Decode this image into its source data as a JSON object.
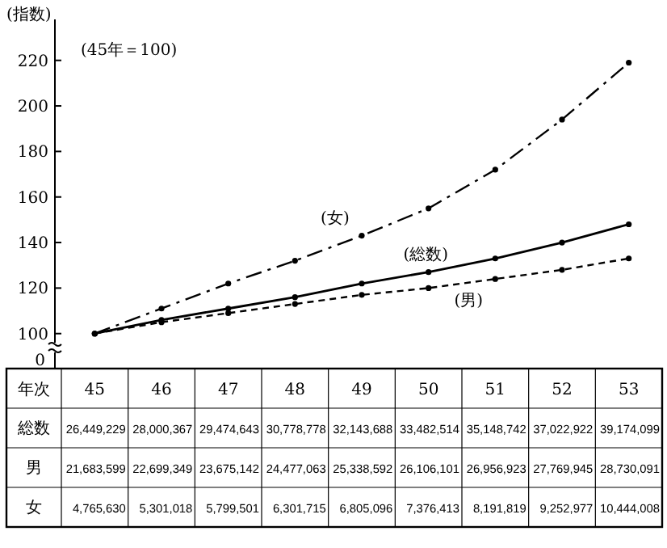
{
  "chart_data": {
    "type": "line",
    "ylabel": "(指数)",
    "categories": [
      "45",
      "46",
      "47",
      "48",
      "49",
      "50",
      "51",
      "52",
      "53"
    ],
    "series": [
      {
        "name": "(総数)",
        "color": "#000000",
        "line_style": "solid",
        "values": [
          100,
          106,
          111,
          116,
          122,
          127,
          133,
          140,
          148
        ]
      },
      {
        "name": "(男)",
        "color": "#000000",
        "line_style": "dashed",
        "values": [
          100,
          105,
          109,
          113,
          117,
          120,
          124,
          128,
          133
        ]
      },
      {
        "name": "(女)",
        "color": "#000000",
        "line_style": "dashdot",
        "values": [
          100,
          111,
          122,
          132,
          143,
          155,
          172,
          194,
          219
        ]
      }
    ],
    "ylim": [
      96,
      238
    ],
    "yticks": [
      100,
      120,
      140,
      160,
      180,
      200,
      220
    ],
    "marker": "circle",
    "grid": false,
    "tick_labels": "y",
    "annotations": [
      "(45年＝100)",
      "0",
      "年次",
      "総数",
      "26,449,229",
      "28,000,367",
      "29,474,643",
      "30,778,778",
      "32,143,688",
      "33,482,514",
      "35,148,742",
      "37,022,922",
      "39,174,099",
      "男",
      "21,683,599",
      "22,699,349",
      "23,675,142",
      "24,477,063",
      "25,338,592",
      "26,106,101",
      "26,956,923",
      "27,769,945",
      "28,730,091",
      "女",
      "4,765,630",
      "5,301,018",
      "5,799,501",
      "6,301,715",
      "6,805,096",
      "7,376,413",
      "8,191,819",
      "9,252,977",
      "10,444,008"
    ]
  }
}
